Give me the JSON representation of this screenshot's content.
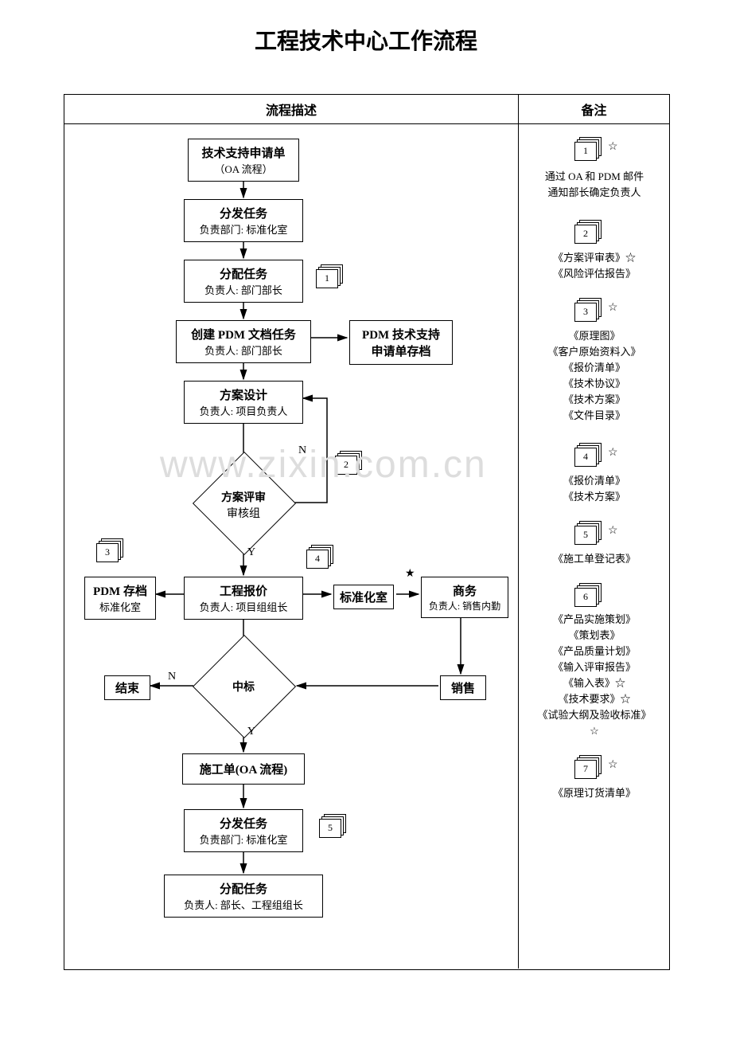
{
  "title": "工程技术中心工作流程",
  "header": {
    "left": "流程描述",
    "right": "备注"
  },
  "nodes": {
    "n1": {
      "t": "技术支持申请单",
      "s": "（OA 流程）"
    },
    "n2": {
      "t": "分发任务",
      "s": "负责部门: 标准化室"
    },
    "n3": {
      "t": "分配任务",
      "s": "负责人: 部门部长"
    },
    "n4": {
      "t": "创建 PDM 文档任务",
      "s": "负责人: 部门部长"
    },
    "n4b": {
      "t": "PDM 技术支持",
      "s": "申请单存档"
    },
    "n5": {
      "t": "方案设计",
      "s": "负责人: 项目负责人"
    },
    "d1": {
      "t": "方案评审",
      "s": "审核组"
    },
    "n6": {
      "t": "工程报价",
      "s": "负责人: 项目组组长"
    },
    "n6l": {
      "t": "PDM 存档",
      "s": "标准化室"
    },
    "n6m": {
      "t": "标准化室"
    },
    "n6r": {
      "t": "商务",
      "s": "负责人: 销售内勤"
    },
    "d2": {
      "t": "中标"
    },
    "end": {
      "t": "结束"
    },
    "sale": {
      "t": "销售"
    },
    "n7": {
      "t": "施工单(OA 流程)"
    },
    "n8": {
      "t": "分发任务",
      "s": "负责部门: 标准化室"
    },
    "n9": {
      "t": "分配任务",
      "s": "负责人: 部长、工程组组长"
    }
  },
  "labels": {
    "Y": "Y",
    "N": "N"
  },
  "docs": {
    "1": "1",
    "2": "2",
    "3": "3",
    "4": "4",
    "5": "5",
    "6": "6",
    "7": "7"
  },
  "remarks": {
    "r1": "通过 OA 和 PDM 邮件\n通知部长确定负责人",
    "r2": "《方案评审表》☆\n《风险评估报告》",
    "r3": "《原理图》\n《客户原始资料入》\n《报价清单》\n《技术协议》\n《技术方案》\n《文件目录》",
    "r4": "《报价清单》\n《技术方案》",
    "r5": "《施工单登记表》",
    "r6": "《产品实施策划》\n《策划表》\n《产品质量计划》\n《输入评审报告》\n《输入表》☆\n《技术要求》☆\n《试验大纲及验收标准》\n☆",
    "r7": "《原理订货清单》"
  },
  "style": {
    "border": "#000000",
    "bg": "#ffffff",
    "font": "SimSun",
    "title_size": 28,
    "body_size": 14
  }
}
